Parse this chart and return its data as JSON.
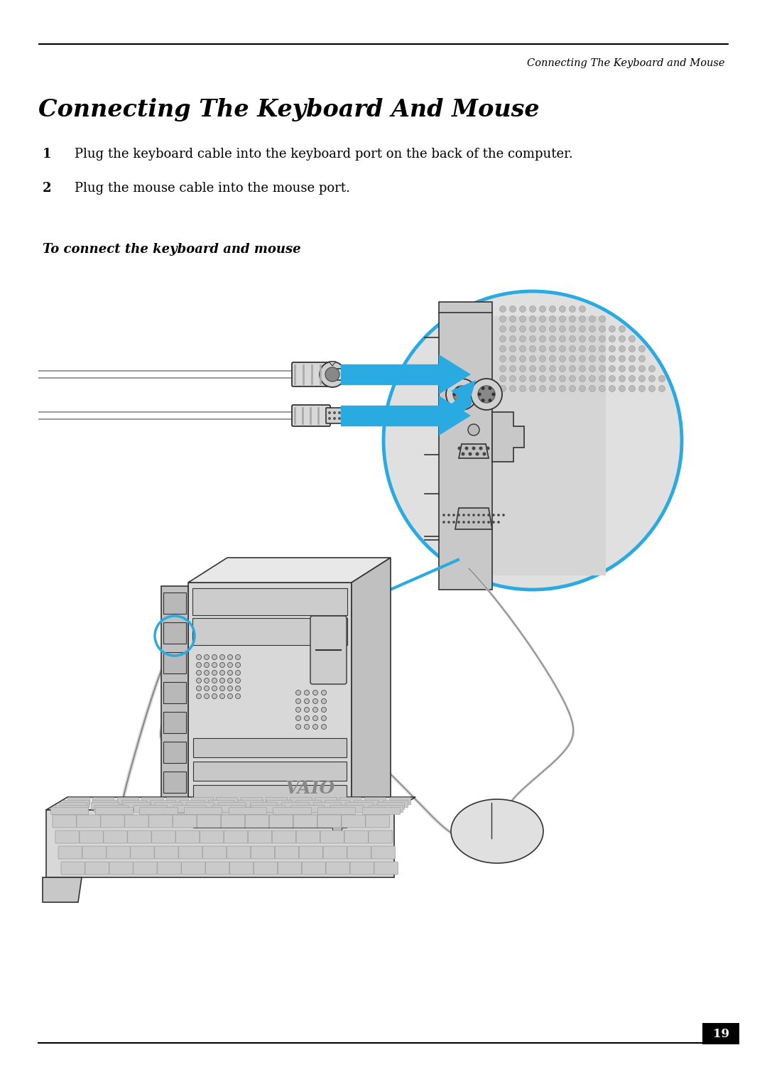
{
  "header_text": "Connecting The Keyboard and Mouse",
  "title": "Connecting The Keyboard And Mouse",
  "step1": "Plug the keyboard cable into the keyboard port on the back of the computer.",
  "step2": "Plug the mouse cable into the mouse port.",
  "subtitle": "To connect the keyboard and mouse",
  "page_number": "19",
  "bg_color": "#ffffff",
  "text_color": "#000000",
  "header_line_color": "#000000",
  "arrow_color": "#29abe2",
  "circle_color": "#29abe2",
  "panel_color": "#d0d0d0",
  "panel_dark": "#b0b0b0",
  "tower_color": "#d8d8d8",
  "tower_dark": "#c0c0c0",
  "tower_darker": "#a8a8a8",
  "line_color": "#333333",
  "cable_color": "#cccccc",
  "cable_edge": "#888888",
  "vent_dot": "#aaaaaa",
  "key_color": "#c8c8c8",
  "key_edge": "#888888"
}
